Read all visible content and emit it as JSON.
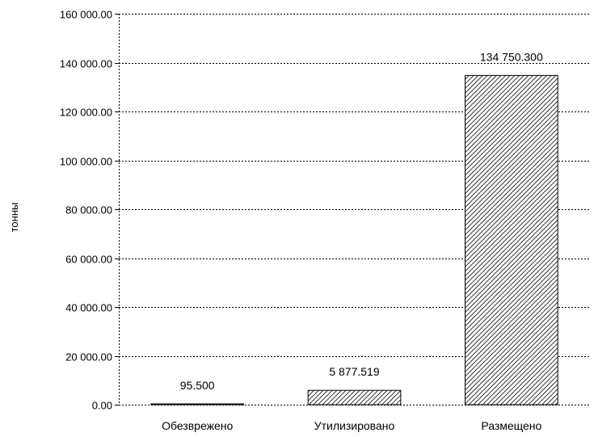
{
  "chart_data": {
    "type": "bar",
    "title": "",
    "xlabel": "",
    "ylabel": "тонны",
    "categories": [
      "Обезврежено",
      "Утилизировано",
      "Размещено"
    ],
    "values": [
      95.5,
      5877.519,
      134750.3
    ],
    "data_labels": [
      "95.500",
      "5 877.519",
      "134 750.300"
    ],
    "ylim": [
      0,
      160000
    ],
    "y_ticks": [
      0,
      20000,
      40000,
      60000,
      80000,
      100000,
      120000,
      140000,
      160000
    ],
    "y_tick_labels": [
      "0.00",
      "20 000.00",
      "40 000.00",
      "60 000.00",
      "80 000.00",
      "100 000.00",
      "120 000.00",
      "140 000.00",
      "160 000.00"
    ],
    "grid": true,
    "bar_fill": "diagonal-hatch",
    "colors": {
      "bar_stroke": "#000000",
      "hatch": "#000000",
      "grid": "#000000",
      "background": "#ffffff"
    }
  }
}
